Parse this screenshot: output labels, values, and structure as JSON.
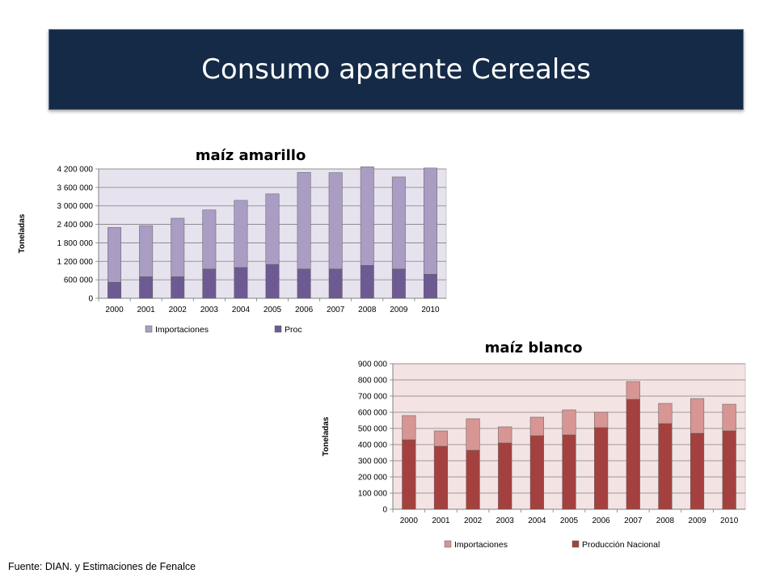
{
  "slide": {
    "title": "Consumo aparente Cereales",
    "source": "Fuente: DIAN. y Estimaciones de Fenalce"
  },
  "chart_data": [
    {
      "id": "amarillo",
      "type": "bar",
      "stacked": true,
      "title": "maíz amarillo",
      "ylabel": "Toneladas",
      "xlabel": "",
      "categories": [
        "2000",
        "2001",
        "2002",
        "2003",
        "2004",
        "2005",
        "2006",
        "2007",
        "2008",
        "2009",
        "2010"
      ],
      "ylim": [
        0,
        4200000
      ],
      "yticks": [
        0,
        600000,
        1200000,
        1800000,
        2400000,
        3000000,
        3600000,
        4200000
      ],
      "ytick_labels": [
        "0",
        "600 000",
        "1 200 000",
        "1 800 000",
        "2 400 000",
        "3 000 000",
        "3 600 000",
        "4 200 000"
      ],
      "series": [
        {
          "name": "Proc",
          "color": "#6e5a93",
          "values": [
            520000,
            700000,
            700000,
            950000,
            1000000,
            1100000,
            950000,
            950000,
            1070000,
            950000,
            780000
          ]
        },
        {
          "name": "Importaciones",
          "color": "#aa9dc4",
          "values": [
            1780000,
            1660000,
            1900000,
            1920000,
            2180000,
            2290000,
            3140000,
            3130000,
            3200000,
            2990000,
            3450000
          ]
        }
      ],
      "legend": {
        "placement": "bottom",
        "order": [
          "Importaciones",
          "Proc"
        ]
      },
      "grid": true,
      "plot_bg": "#e6e3ef"
    },
    {
      "id": "blanco",
      "type": "bar",
      "stacked": true,
      "title": "maíz blanco",
      "ylabel": "Toneladas",
      "xlabel": "",
      "categories": [
        "2000",
        "2001",
        "2002",
        "2003",
        "2004",
        "2005",
        "2006",
        "2007",
        "2008",
        "2009",
        "2010"
      ],
      "ylim": [
        0,
        900000
      ],
      "yticks": [
        0,
        100000,
        200000,
        300000,
        400000,
        500000,
        600000,
        700000,
        800000,
        900000
      ],
      "ytick_labels": [
        "0",
        "100 000",
        "200 000",
        "300 000",
        "400 000",
        "500 000",
        "600 000",
        "700 000",
        "800 000",
        "900 000"
      ],
      "series": [
        {
          "name": "Producción Nacional",
          "color": "#a4413f",
          "values": [
            430000,
            390000,
            365000,
            410000,
            455000,
            460000,
            505000,
            680000,
            530000,
            470000,
            485000
          ]
        },
        {
          "name": "Importaciones",
          "color": "#d79593",
          "values": [
            150000,
            95000,
            195000,
            100000,
            115000,
            155000,
            95000,
            110000,
            125000,
            215000,
            165000
          ]
        }
      ],
      "legend": {
        "placement": "bottom",
        "order": [
          "Importaciones",
          "Producción Nacional"
        ]
      },
      "grid": true,
      "plot_bg": "#f3e4e3"
    }
  ]
}
